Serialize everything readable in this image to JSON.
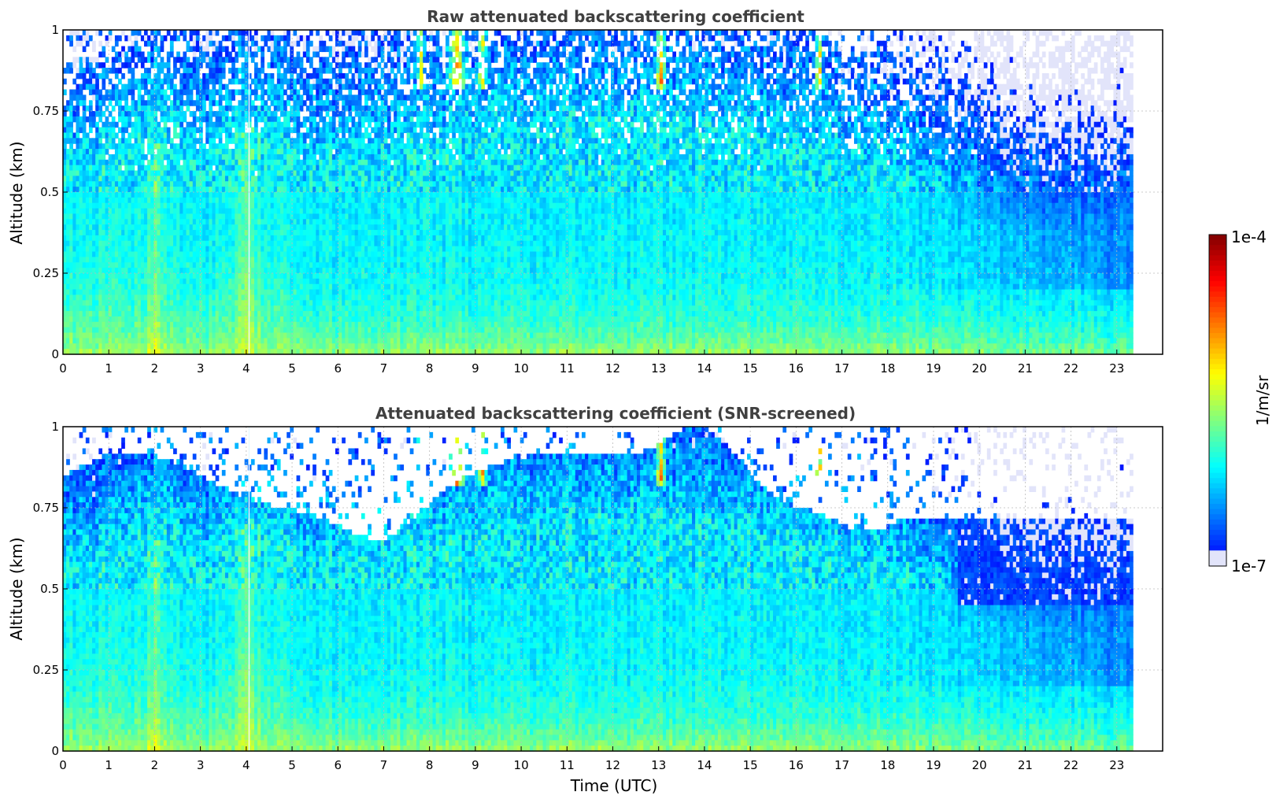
{
  "chart_data": [
    {
      "type": "heatmap",
      "title": "Raw attenuated backscattering coefficient",
      "xlabel": "",
      "ylabel": "Altitude (km)",
      "xlim": [
        0,
        24
      ],
      "ylim": [
        0,
        1
      ],
      "data_xmax": 23.35,
      "x_ticks": [
        "0",
        "1",
        "2",
        "3",
        "4",
        "5",
        "6",
        "7",
        "8",
        "9",
        "10",
        "11",
        "12",
        "13",
        "14",
        "15",
        "16",
        "17",
        "18",
        "19",
        "20",
        "21",
        "22",
        "23"
      ],
      "y_ticks": [
        "0",
        "0.25",
        "0.5",
        "0.75",
        "1"
      ],
      "grid": true,
      "screened": false,
      "description_values": {
        "near_surface_log10": -5.6,
        "upper_noise_log10": -6.8,
        "cloud_events_utc": [
          8.6,
          9.1,
          13.05,
          16.5
        ]
      }
    },
    {
      "type": "heatmap",
      "title": "Attenuated backscattering coefficient (SNR-screened)",
      "xlabel": "Time (UTC)",
      "ylabel": "Altitude (km)",
      "xlim": [
        0,
        24
      ],
      "ylim": [
        0,
        1
      ],
      "data_xmax": 23.35,
      "x_ticks": [
        "0",
        "1",
        "2",
        "3",
        "4",
        "5",
        "6",
        "7",
        "8",
        "9",
        "10",
        "11",
        "12",
        "13",
        "14",
        "15",
        "16",
        "17",
        "18",
        "19",
        "20",
        "21",
        "22",
        "23"
      ],
      "y_ticks": [
        "0",
        "0.25",
        "0.5",
        "0.75",
        "1"
      ],
      "grid": true,
      "screened": true
    }
  ],
  "colorbar": {
    "label": "1/m/sr",
    "min_label": "1e-7",
    "max_label": "1e-4",
    "min": 1e-07,
    "max": 0.0001,
    "scale": "log",
    "colormap": "jet"
  }
}
